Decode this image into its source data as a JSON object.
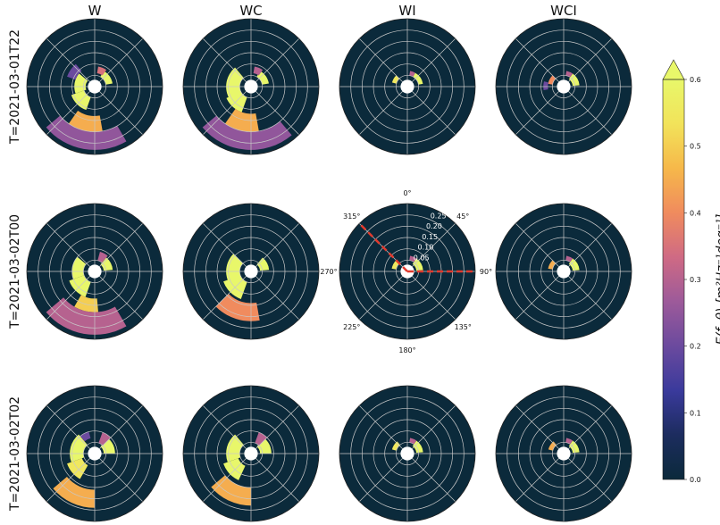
{
  "chart_data": {
    "type": "heatmap",
    "subtype": "polar-directional-spectrum-grid",
    "columns": [
      "W",
      "WC",
      "WI",
      "WCI"
    ],
    "rows": [
      "T=2021-03-01T22",
      "T=2021-03-02T00",
      "T=2021-03-02T02"
    ],
    "direction_labels": [
      "0°",
      "45°",
      "90°",
      "135°",
      "180°",
      "225°",
      "270°",
      "315°"
    ],
    "radial_ticks": [
      "0.05",
      "0.10",
      "0.15",
      "0.20",
      "0.25"
    ],
    "radial_range": [
      0,
      0.3
    ],
    "annotated_panel": {
      "row": 1,
      "column": 2
    },
    "highlight_lines_deg": [
      315,
      90
    ],
    "highlight_color": "#e03a2e",
    "colorbar": {
      "label": "E(f, θ) [m²Hz⁻¹deg⁻¹]",
      "ticks": [
        "0.0",
        "0.1",
        "0.2",
        "0.3",
        "0.4",
        "0.5",
        "0.6"
      ],
      "range": [
        0.0,
        0.6
      ],
      "extend": "max",
      "colormap": [
        "#0b2a3b",
        "#1c2c5e",
        "#3a3a9c",
        "#6b4a9e",
        "#9d5a9a",
        "#cf6a84",
        "#f08b5e",
        "#f6b84a",
        "#f2e35a",
        "#e8f76a"
      ]
    },
    "panel_background": "#0b2a3b",
    "patches": {
      "W": {
        "T=2021-03-01T22": [
          {
            "theta": [
              250,
              310
            ],
            "r": [
              0.04,
              0.09
            ],
            "v": 0.6
          },
          {
            "theta": [
              200,
              250
            ],
            "r": [
              0.05,
              0.11
            ],
            "v": 0.6
          },
          {
            "theta": [
              30,
              80
            ],
            "r": [
              0.05,
              0.08
            ],
            "v": 0.6
          },
          {
            "theta": [
              10,
              35
            ],
            "r": [
              0.06,
              0.09
            ],
            "v": 0.35
          },
          {
            "theta": [
              150,
              230
            ],
            "r": [
              0.2,
              0.28
            ],
            "v": 0.25
          },
          {
            "theta": [
              170,
              215
            ],
            "r": [
              0.13,
              0.2
            ],
            "v": 0.45
          },
          {
            "theta": [
              290,
              320
            ],
            "r": [
              0.09,
              0.13
            ],
            "v": 0.2
          }
        ],
        "T=2021-03-02T00": [
          {
            "theta": [
              250,
              310
            ],
            "r": [
              0.05,
              0.1
            ],
            "v": 0.6
          },
          {
            "theta": [
              200,
              250
            ],
            "r": [
              0.05,
              0.12
            ],
            "v": 0.6
          },
          {
            "theta": [
              40,
              85
            ],
            "r": [
              0.04,
              0.08
            ],
            "v": 0.6
          },
          {
            "theta": [
              15,
              40
            ],
            "r": [
              0.05,
              0.09
            ],
            "v": 0.3
          },
          {
            "theta": [
              150,
              230
            ],
            "r": [
              0.18,
              0.28
            ],
            "v": 0.3
          },
          {
            "theta": [
              175,
              210
            ],
            "r": [
              0.12,
              0.18
            ],
            "v": 0.5
          }
        ],
        "T=2021-03-02T02": [
          {
            "theta": [
              250,
              320
            ],
            "r": [
              0.05,
              0.11
            ],
            "v": 0.6
          },
          {
            "theta": [
              210,
              250
            ],
            "r": [
              0.06,
              0.13
            ],
            "v": 0.55
          },
          {
            "theta": [
              40,
              90
            ],
            "r": [
              0.04,
              0.09
            ],
            "v": 0.6
          },
          {
            "theta": [
              20,
              45
            ],
            "r": [
              0.05,
              0.1
            ],
            "v": 0.3
          },
          {
            "theta": [
              180,
              230
            ],
            "r": [
              0.16,
              0.24
            ],
            "v": 0.45
          },
          {
            "theta": [
              320,
              345
            ],
            "r": [
              0.07,
              0.1
            ],
            "v": 0.2
          }
        ]
      },
      "WC": {
        "T=2021-03-01T22": [
          {
            "theta": [
              240,
              320
            ],
            "r": [
              0.05,
              0.11
            ],
            "v": 0.6
          },
          {
            "theta": [
              200,
              245
            ],
            "r": [
              0.05,
              0.12
            ],
            "v": 0.6
          },
          {
            "theta": [
              30,
              80
            ],
            "r": [
              0.05,
              0.08
            ],
            "v": 0.6
          },
          {
            "theta": [
              140,
              230
            ],
            "r": [
              0.2,
              0.28
            ],
            "v": 0.25
          },
          {
            "theta": [
              170,
              215
            ],
            "r": [
              0.12,
              0.2
            ],
            "v": 0.45
          },
          {
            "theta": [
              10,
              35
            ],
            "r": [
              0.06,
              0.09
            ],
            "v": 0.3
          }
        ],
        "T=2021-03-02T00": [
          {
            "theta": [
              245,
              315
            ],
            "r": [
              0.05,
              0.11
            ],
            "v": 0.6
          },
          {
            "theta": [
              200,
              250
            ],
            "r": [
              0.05,
              0.13
            ],
            "v": 0.6
          },
          {
            "theta": [
              40,
              85
            ],
            "r": [
              0.04,
              0.08
            ],
            "v": 0.6
          },
          {
            "theta": [
              170,
              225
            ],
            "r": [
              0.14,
              0.22
            ],
            "v": 0.4
          }
        ],
        "T=2021-03-02T02": [
          {
            "theta": [
              250,
              320
            ],
            "r": [
              0.05,
              0.11
            ],
            "v": 0.6
          },
          {
            "theta": [
              205,
              250
            ],
            "r": [
              0.06,
              0.13
            ],
            "v": 0.6
          },
          {
            "theta": [
              40,
              90
            ],
            "r": [
              0.04,
              0.09
            ],
            "v": 0.6
          },
          {
            "theta": [
              180,
              230
            ],
            "r": [
              0.15,
              0.23
            ],
            "v": 0.45
          },
          {
            "theta": [
              20,
              45
            ],
            "r": [
              0.05,
              0.1
            ],
            "v": 0.3
          }
        ]
      },
      "WI": {
        "T=2021-03-01T22": [
          {
            "theta": [
              285,
              315
            ],
            "r": [
              0.05,
              0.07
            ],
            "v": 0.55
          },
          {
            "theta": [
              30,
              80
            ],
            "r": [
              0.05,
              0.07
            ],
            "v": 0.6
          },
          {
            "theta": [
              10,
              30
            ],
            "r": [
              0.05,
              0.07
            ],
            "v": 0.3
          }
        ],
        "T=2021-03-02T00": [
          {
            "theta": [
              280,
              315
            ],
            "r": [
              0.05,
              0.07
            ],
            "v": 0.55
          },
          {
            "theta": [
              35,
              85
            ],
            "r": [
              0.04,
              0.07
            ],
            "v": 0.6
          },
          {
            "theta": [
              10,
              35
            ],
            "r": [
              0.05,
              0.07
            ],
            "v": 0.3
          }
        ],
        "T=2021-03-02T02": [
          {
            "theta": [
              285,
              320
            ],
            "r": [
              0.05,
              0.07
            ],
            "v": 0.55
          },
          {
            "theta": [
              35,
              85
            ],
            "r": [
              0.04,
              0.07
            ],
            "v": 0.6
          },
          {
            "theta": [
              10,
              35
            ],
            "r": [
              0.05,
              0.07
            ],
            "v": 0.3
          }
        ]
      },
      "WCI": {
        "T=2021-03-01T22": [
          {
            "theta": [
              280,
              315
            ],
            "r": [
              0.05,
              0.07
            ],
            "v": 0.4
          },
          {
            "theta": [
              35,
              85
            ],
            "r": [
              0.04,
              0.07
            ],
            "v": 0.6
          },
          {
            "theta": [
              10,
              35
            ],
            "r": [
              0.05,
              0.07
            ],
            "v": 0.3
          },
          {
            "theta": [
              260,
              285
            ],
            "r": [
              0.07,
              0.09
            ],
            "v": 0.2
          }
        ],
        "T=2021-03-02T00": [
          {
            "theta": [
              280,
              315
            ],
            "r": [
              0.05,
              0.07
            ],
            "v": 0.45
          },
          {
            "theta": [
              35,
              85
            ],
            "r": [
              0.04,
              0.07
            ],
            "v": 0.6
          },
          {
            "theta": [
              10,
              35
            ],
            "r": [
              0.05,
              0.07
            ],
            "v": 0.3
          }
        ],
        "T=2021-03-02T02": [
          {
            "theta": [
              285,
              320
            ],
            "r": [
              0.05,
              0.07
            ],
            "v": 0.45
          },
          {
            "theta": [
              35,
              85
            ],
            "r": [
              0.04,
              0.07
            ],
            "v": 0.6
          },
          {
            "theta": [
              10,
              35
            ],
            "r": [
              0.05,
              0.07
            ],
            "v": 0.3
          }
        ]
      }
    }
  }
}
